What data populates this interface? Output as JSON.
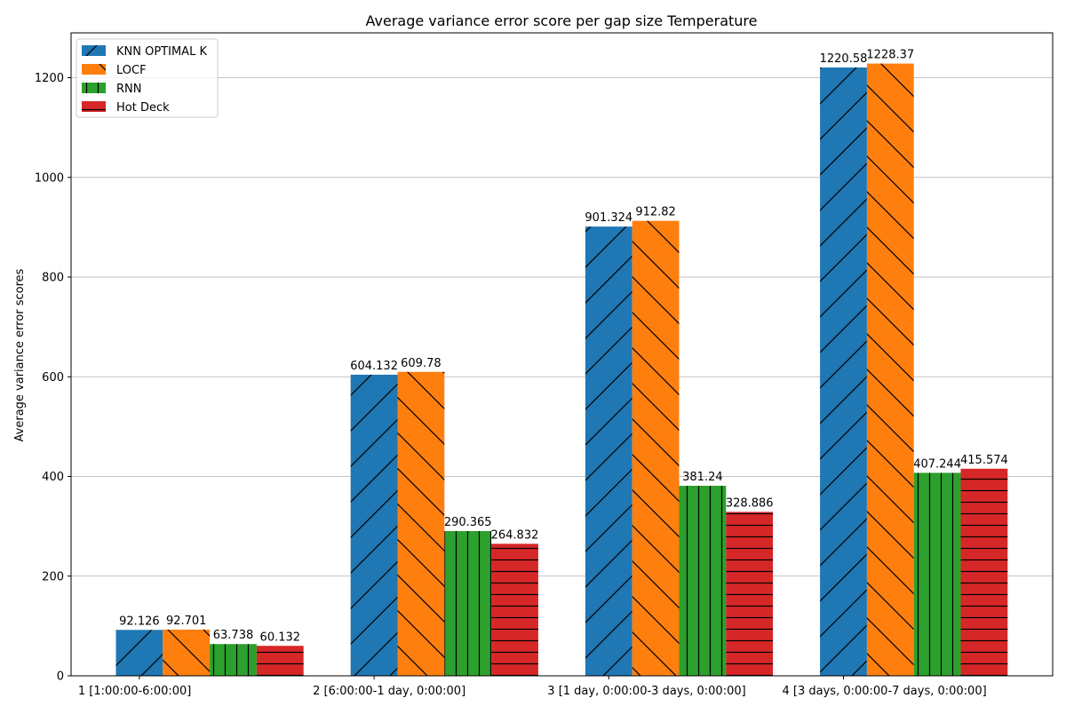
{
  "chart_data": {
    "type": "bar",
    "title": "Average variance error score per gap size Temperature",
    "xlabel": "",
    "ylabel": "Average variance error scores",
    "categories": [
      "1 [1:00:00-6:00:00]",
      "2 [6:00:00-1 day, 0:00:00]",
      "3 [1 day, 0:00:00-3 days, 0:00:00]",
      "4 [3 days, 0:00:00-7 days, 0:00:00]"
    ],
    "series": [
      {
        "name": "KNN OPTIMAL K",
        "color": "#1f77b4",
        "hatch": "/",
        "values": [
          92.126,
          604.132,
          901.324,
          1220.58
        ],
        "labels": [
          "92.126",
          "604.132",
          "901.324",
          "1220.58"
        ]
      },
      {
        "name": "LOCF",
        "color": "#ff7f0e",
        "hatch": "\\",
        "values": [
          92.701,
          609.78,
          912.82,
          1228.37
        ],
        "labels": [
          "92.701",
          "609.78",
          "912.82",
          "1228.37"
        ]
      },
      {
        "name": "RNN",
        "color": "#2ca02c",
        "hatch": "|",
        "values": [
          63.738,
          290.365,
          381.24,
          407.244
        ],
        "labels": [
          "63.738",
          "290.365",
          "381.24",
          "407.244"
        ]
      },
      {
        "name": "Hot Deck",
        "color": "#d62728",
        "hatch": "-",
        "values": [
          60.132,
          264.832,
          328.886,
          415.574
        ],
        "labels": [
          "60.132",
          "264.832",
          "328.886",
          "415.574"
        ]
      }
    ],
    "ylim": [
      0,
      1290
    ],
    "yticks": [
      0,
      200,
      400,
      600,
      800,
      1000,
      1200
    ],
    "grid": "y",
    "legend": "top-left"
  }
}
